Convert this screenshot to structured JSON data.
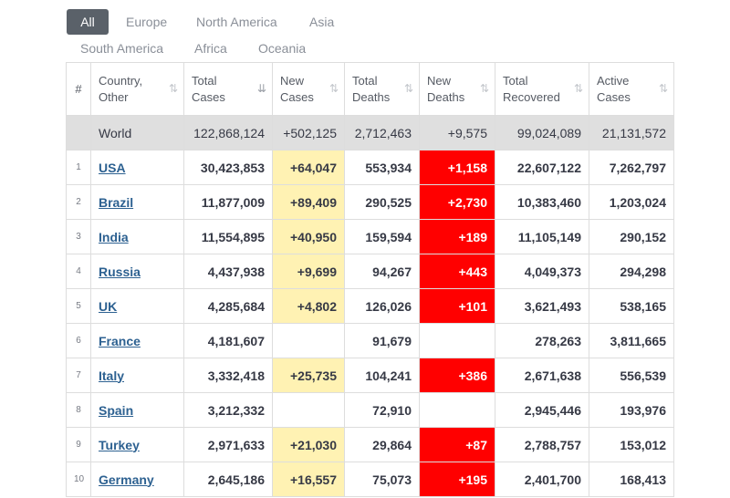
{
  "tabs": [
    "All",
    "Europe",
    "North America",
    "Asia",
    "South America",
    "Africa",
    "Oceania"
  ],
  "header": {
    "num": "#",
    "country": "Country, Other",
    "total_cases": "Total Cases",
    "new_cases": "New Cases",
    "total_deaths": "Total Deaths",
    "new_deaths": "New Deaths",
    "total_recovered": "Total Recovered",
    "active_cases": "Active Cases"
  },
  "world": {
    "country": "World",
    "total_cases": "122,868,124",
    "new_cases": "+502,125",
    "total_deaths": "2,712,463",
    "new_deaths": "+9,575",
    "total_recovered": "99,024,089",
    "active_cases": "21,131,572"
  },
  "rows": [
    {
      "num": "1",
      "country": "USA",
      "total_cases": "30,423,853",
      "new_cases": "+64,047",
      "total_deaths": "553,934",
      "new_deaths": "+1,158",
      "total_recovered": "22,607,122",
      "active_cases": "7,262,797"
    },
    {
      "num": "2",
      "country": "Brazil",
      "total_cases": "11,877,009",
      "new_cases": "+89,409",
      "total_deaths": "290,525",
      "new_deaths": "+2,730",
      "total_recovered": "10,383,460",
      "active_cases": "1,203,024"
    },
    {
      "num": "3",
      "country": "India",
      "total_cases": "11,554,895",
      "new_cases": "+40,950",
      "total_deaths": "159,594",
      "new_deaths": "+189",
      "total_recovered": "11,105,149",
      "active_cases": "290,152"
    },
    {
      "num": "4",
      "country": "Russia",
      "total_cases": "4,437,938",
      "new_cases": "+9,699",
      "total_deaths": "94,267",
      "new_deaths": "+443",
      "total_recovered": "4,049,373",
      "active_cases": "294,298"
    },
    {
      "num": "5",
      "country": "UK",
      "total_cases": "4,285,684",
      "new_cases": "+4,802",
      "total_deaths": "126,026",
      "new_deaths": "+101",
      "total_recovered": "3,621,493",
      "active_cases": "538,165"
    },
    {
      "num": "6",
      "country": "France",
      "total_cases": "4,181,607",
      "new_cases": "",
      "total_deaths": "91,679",
      "new_deaths": "",
      "total_recovered": "278,263",
      "active_cases": "3,811,665"
    },
    {
      "num": "7",
      "country": "Italy",
      "total_cases": "3,332,418",
      "new_cases": "+25,735",
      "total_deaths": "104,241",
      "new_deaths": "+386",
      "total_recovered": "2,671,638",
      "active_cases": "556,539"
    },
    {
      "num": "8",
      "country": "Spain",
      "total_cases": "3,212,332",
      "new_cases": "",
      "total_deaths": "72,910",
      "new_deaths": "",
      "total_recovered": "2,945,446",
      "active_cases": "193,976"
    },
    {
      "num": "9",
      "country": "Turkey",
      "total_cases": "2,971,633",
      "new_cases": "+21,030",
      "total_deaths": "29,864",
      "new_deaths": "+87",
      "total_recovered": "2,788,757",
      "active_cases": "153,012"
    },
    {
      "num": "10",
      "country": "Germany",
      "total_cases": "2,645,186",
      "new_cases": "+16,557",
      "total_deaths": "75,073",
      "new_deaths": "+195",
      "total_recovered": "2,401,700",
      "active_cases": "168,413"
    }
  ],
  "colors": {
    "active_tab_bg": "#5a6169",
    "new_cases_bg": "#fff2b3",
    "new_deaths_bg": "#ff0000",
    "world_row_bg": "#dfdfdf",
    "link": "#2d6191"
  },
  "icons": {
    "sort": "sort-arrows-icon",
    "sort_active": "sort-desc-icon"
  }
}
